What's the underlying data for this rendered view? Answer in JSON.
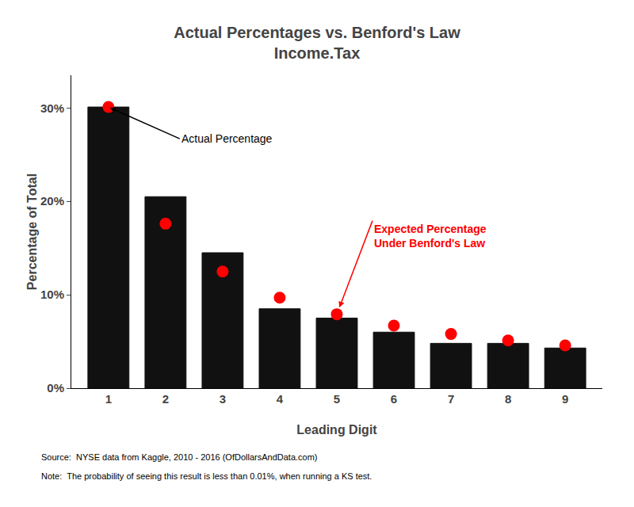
{
  "chart_data": {
    "type": "bar",
    "title": "Actual Percentages vs. Benford's Law",
    "subtitle": "Income.Tax",
    "xlabel": "Leading Digit",
    "ylabel": "Percentage of Total",
    "x": [
      1,
      2,
      3,
      4,
      5,
      6,
      7,
      8,
      9
    ],
    "series": [
      {
        "type": "bar",
        "color": "#111111",
        "values": [
          0.301,
          0.205,
          0.145,
          0.085,
          0.075,
          0.06,
          0.048,
          0.048,
          0.043
        ]
      },
      {
        "type": "scatter",
        "marker": "circle",
        "color": "#FF0000",
        "values": [
          0.30103,
          0.17609,
          0.12494,
          0.09691,
          0.07918,
          0.06695,
          0.05799,
          0.05115,
          0.04576
        ]
      }
    ],
    "xlim": [
      0.35,
      9.65
    ],
    "xticks": [
      1,
      2,
      3,
      4,
      5,
      6,
      7,
      8,
      9
    ],
    "ylim": [
      0,
      0.335
    ],
    "yticks": [
      {
        "value": 0,
        "label": "0%"
      },
      {
        "value": 0.1,
        "label": "10%"
      },
      {
        "value": 0.2,
        "label": "20%"
      },
      {
        "value": 0.3,
        "label": "30%"
      }
    ],
    "grid": false,
    "annotations": [
      "Actual Percentage",
      "Expected Percentage\nUnder Benford's Law",
      "Source:  NYSE data from Kaggle, 2010 - 2016 (OfDollarsAndData.com)",
      "Note:  The probability of seeing this result is less than 0.01%, when running a KS test."
    ]
  }
}
